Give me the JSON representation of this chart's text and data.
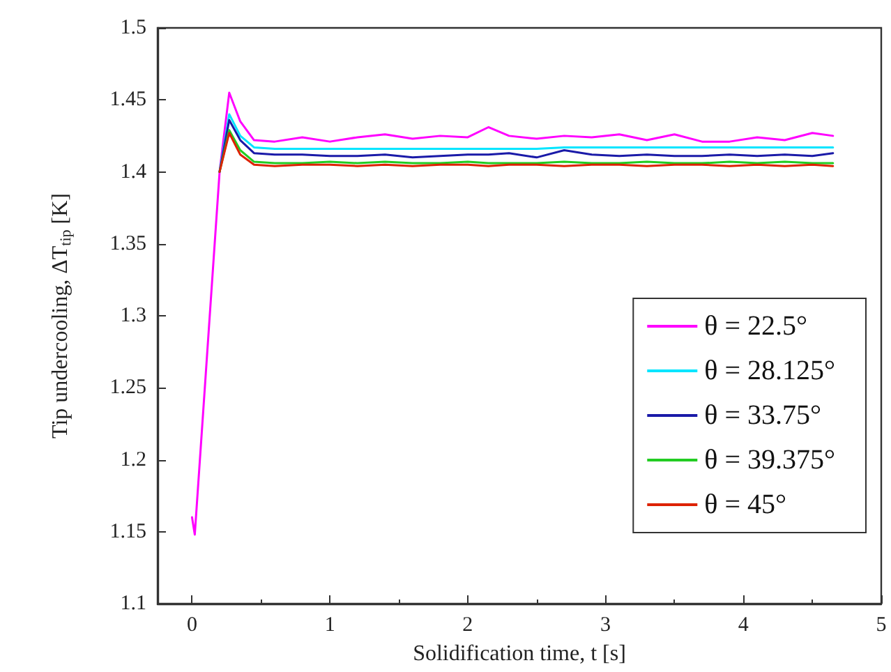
{
  "chart_data": {
    "type": "line",
    "xlabel": "Solidification time, t [s]",
    "ylabel": "Tip undercooling, ΔT$_{tip}$ [K]",
    "x": [
      0,
      0.02,
      0.1,
      0.2,
      0.27,
      0.35,
      0.45,
      0.6,
      0.8,
      1.0,
      1.2,
      1.4,
      1.6,
      1.8,
      2.0,
      2.15,
      2.3,
      2.5,
      2.7,
      2.9,
      3.1,
      3.3,
      3.5,
      3.7,
      3.9,
      4.1,
      4.3,
      4.5,
      4.65
    ],
    "xlim": [
      -0.25,
      5
    ],
    "xticks": [
      0,
      1,
      2,
      3,
      4,
      5
    ],
    "ylim": [
      1.1,
      1.5
    ],
    "yticks": [
      1.1,
      1.15,
      1.2,
      1.25,
      1.3,
      1.35,
      1.4,
      1.45,
      1.5
    ],
    "grid": false,
    "legend": "bottom right",
    "marker": "none",
    "line_style": "solid",
    "series": [
      {
        "name": "θ = 22.5°",
        "color": "#ff00ff",
        "values": [
          1.16,
          1.148,
          1.26,
          1.4,
          1.455,
          1.435,
          1.422,
          1.421,
          1.424,
          1.421,
          1.424,
          1.426,
          1.423,
          1.425,
          1.424,
          1.431,
          1.425,
          1.423,
          1.425,
          1.424,
          1.426,
          1.422,
          1.426,
          1.421,
          1.421,
          1.424,
          1.422,
          1.427,
          1.425
        ]
      },
      {
        "name": "θ = 28.125°",
        "color": "#00e5ff",
        "values": [
          null,
          null,
          null,
          1.4,
          1.44,
          1.425,
          1.417,
          1.416,
          1.416,
          1.416,
          1.416,
          1.416,
          1.416,
          1.416,
          1.416,
          1.416,
          1.416,
          1.416,
          1.417,
          1.417,
          1.417,
          1.417,
          1.417,
          1.417,
          1.417,
          1.417,
          1.417,
          1.417,
          1.417
        ]
      },
      {
        "name": "θ = 33.75°",
        "color": "#1a1aa8",
        "values": [
          null,
          null,
          null,
          1.4,
          1.436,
          1.422,
          1.413,
          1.412,
          1.412,
          1.411,
          1.411,
          1.412,
          1.41,
          1.411,
          1.412,
          1.412,
          1.413,
          1.41,
          1.415,
          1.412,
          1.411,
          1.412,
          1.411,
          1.411,
          1.412,
          1.411,
          1.412,
          1.411,
          1.413
        ]
      },
      {
        "name": "θ = 39.375°",
        "color": "#22cc22",
        "values": [
          null,
          null,
          null,
          1.4,
          1.429,
          1.415,
          1.407,
          1.406,
          1.406,
          1.407,
          1.406,
          1.407,
          1.406,
          1.406,
          1.407,
          1.406,
          1.406,
          1.406,
          1.407,
          1.406,
          1.406,
          1.407,
          1.406,
          1.406,
          1.407,
          1.406,
          1.407,
          1.406,
          1.406
        ]
      },
      {
        "name": "θ = 45°",
        "color": "#dd2200",
        "values": [
          null,
          null,
          null,
          1.4,
          1.427,
          1.412,
          1.405,
          1.404,
          1.405,
          1.405,
          1.404,
          1.405,
          1.404,
          1.405,
          1.405,
          1.404,
          1.405,
          1.405,
          1.404,
          1.405,
          1.405,
          1.404,
          1.405,
          1.405,
          1.404,
          1.405,
          1.404,
          1.405,
          1.404
        ]
      }
    ]
  }
}
